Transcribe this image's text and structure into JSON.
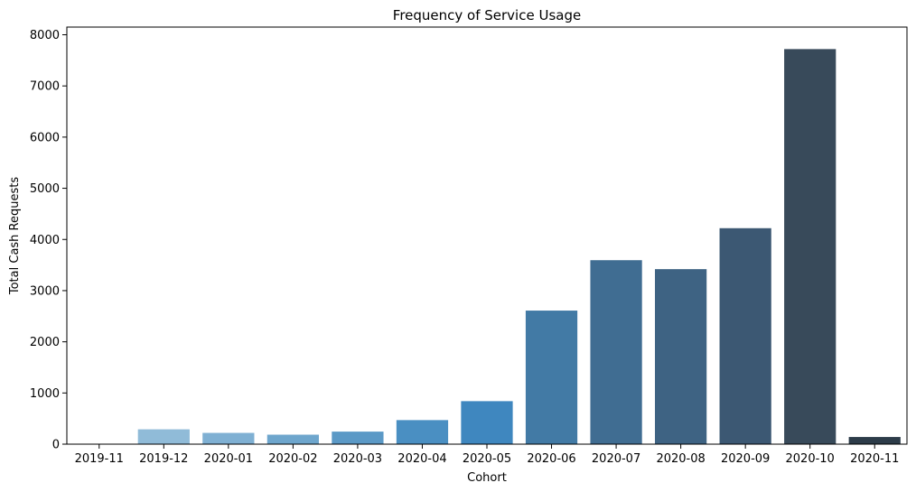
{
  "chart_data": {
    "type": "bar",
    "title": "Frequency of Service Usage",
    "xlabel": "Cohort",
    "ylabel": "Total Cash Requests",
    "categories": [
      "2019-11",
      "2019-12",
      "2020-01",
      "2020-02",
      "2020-03",
      "2020-04",
      "2020-05",
      "2020-06",
      "2020-07",
      "2020-08",
      "2020-09",
      "2020-10",
      "2020-11"
    ],
    "values": [
      1,
      290,
      220,
      185,
      245,
      470,
      840,
      2610,
      3595,
      3420,
      4220,
      7720,
      140
    ],
    "colors": [
      "#9bc4df",
      "#90bbd8",
      "#7fb0d3",
      "#6ea6cd",
      "#5b99c6",
      "#4a8fc2",
      "#3f87bf",
      "#427aa5",
      "#406d92",
      "#3e6383",
      "#3c5873",
      "#384a5a",
      "#2d3c49"
    ],
    "ylim": [
      0,
      8150
    ],
    "yticks": [
      0,
      1000,
      2000,
      3000,
      4000,
      5000,
      6000,
      7000,
      8000
    ],
    "grid": false,
    "legend": "none"
  }
}
